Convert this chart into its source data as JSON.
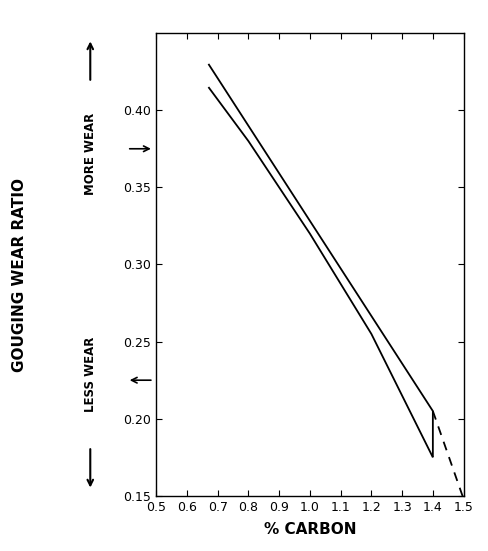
{
  "xlabel": "% CARBON",
  "ylabel": "GOUGING WEAR RATIO",
  "more_wear_label": "MORE WEAR",
  "less_wear_label": "LESS WEAR",
  "xlim": [
    0.5,
    1.5
  ],
  "ylim": [
    0.15,
    0.45
  ],
  "xticks": [
    0.5,
    0.6,
    0.7,
    0.8,
    0.9,
    1.0,
    1.1,
    1.2,
    1.3,
    1.4,
    1.5
  ],
  "yticks": [
    0.15,
    0.2,
    0.25,
    0.3,
    0.35,
    0.4
  ],
  "upper_line_x": [
    0.67,
    1.4,
    1.4
  ],
  "upper_line_y": [
    0.43,
    0.205,
    0.175
  ],
  "lower_line_x": [
    0.67,
    0.8,
    1.0,
    1.2,
    1.4
  ],
  "lower_line_y": [
    0.415,
    0.38,
    0.32,
    0.255,
    0.175
  ],
  "dashed_line_x": [
    1.4,
    1.5
  ],
  "dashed_line_y": [
    0.205,
    0.148
  ],
  "line_color": "#000000",
  "background_color": "#ffffff",
  "figsize": [
    4.88,
    5.51
  ],
  "dpi": 100
}
